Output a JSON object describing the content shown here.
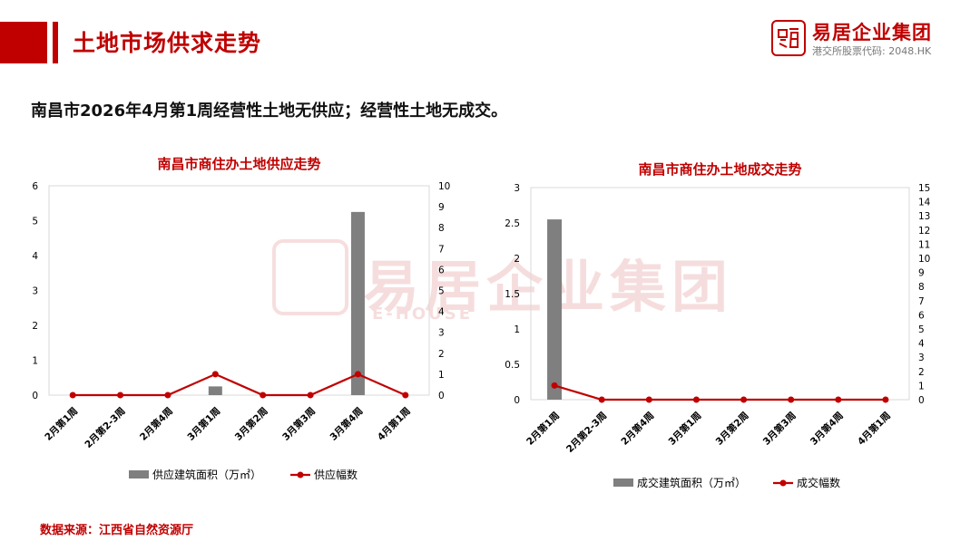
{
  "header": {
    "title": "土地市场供求走势",
    "company_name": "易居企业集团",
    "stock_code": "港交所股票代码: 2048.HK"
  },
  "headline": "南昌市2026年4月第1周经营性土地无供应；经营性土地无成交。",
  "source": "数据来源：江西省自然资源厅",
  "colors": {
    "accent": "#c00000",
    "bar": "#7f7f7f",
    "line": "#c00000"
  },
  "chart_data": [
    {
      "type": "bar",
      "title": "南昌市商住办土地供应走势",
      "categories": [
        "2月第1周",
        "2月第2-3周",
        "2月第4周",
        "3月第1周",
        "3月第2周",
        "3月第3周",
        "3月第4周",
        "4月第1周"
      ],
      "series": [
        {
          "name": "供应建筑面积（万㎡）",
          "type": "bar",
          "axis": "left",
          "values": [
            0,
            0,
            0,
            0.25,
            0,
            0,
            5.25,
            0
          ]
        },
        {
          "name": "供应幅数",
          "type": "line",
          "axis": "right",
          "values": [
            0,
            0,
            0,
            1,
            0,
            0,
            1,
            0
          ]
        }
      ],
      "ylim": [
        0,
        6
      ],
      "yticks": [
        0,
        1,
        2,
        3,
        4,
        5,
        6
      ],
      "y2lim": [
        0,
        10
      ],
      "y2ticks": [
        0,
        1,
        2,
        3,
        4,
        5,
        6,
        7,
        8,
        9,
        10
      ],
      "grid": false,
      "legend": "bottom"
    },
    {
      "type": "bar",
      "title": "南昌市商住办土地成交走势",
      "categories": [
        "2月第1周",
        "2月第2-3周",
        "2月第4周",
        "3月第1周",
        "3月第2周",
        "3月第3周",
        "3月第4周",
        "4月第1周"
      ],
      "series": [
        {
          "name": "成交建筑面积（万㎡）",
          "type": "bar",
          "axis": "left",
          "values": [
            2.55,
            0,
            0,
            0,
            0,
            0,
            0,
            0
          ]
        },
        {
          "name": "成交幅数",
          "type": "line",
          "axis": "right",
          "values": [
            1,
            0,
            0,
            0,
            0,
            0,
            0,
            0
          ]
        }
      ],
      "ylim": [
        0,
        3
      ],
      "yticks": [
        0,
        0.5,
        1,
        1.5,
        2,
        2.5,
        3
      ],
      "y2lim": [
        0,
        15
      ],
      "y2ticks": [
        0,
        1,
        2,
        3,
        4,
        5,
        6,
        7,
        8,
        9,
        10,
        11,
        12,
        13,
        14,
        15
      ],
      "grid": false,
      "legend": "bottom"
    }
  ]
}
